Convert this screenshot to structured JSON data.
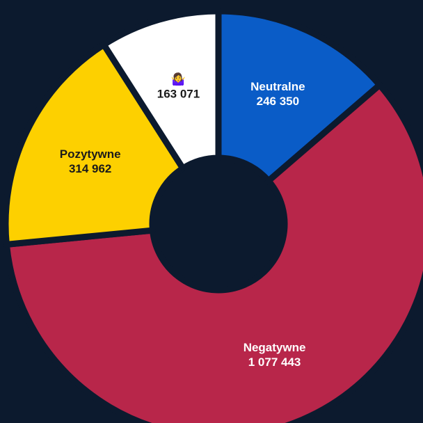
{
  "chart_data": {
    "type": "donut",
    "categories": [
      "Neutralne",
      "Negatywne",
      "Pozytywne",
      "🤷‍♀️"
    ],
    "values": [
      246350,
      1077443,
      314962,
      163071
    ],
    "value_labels": [
      "246 350",
      "1 077 443",
      "314 962",
      "163 071"
    ],
    "colors": [
      "#0a5cc7",
      "#b8264a",
      "#fdd000",
      "#ffffff"
    ]
  }
}
